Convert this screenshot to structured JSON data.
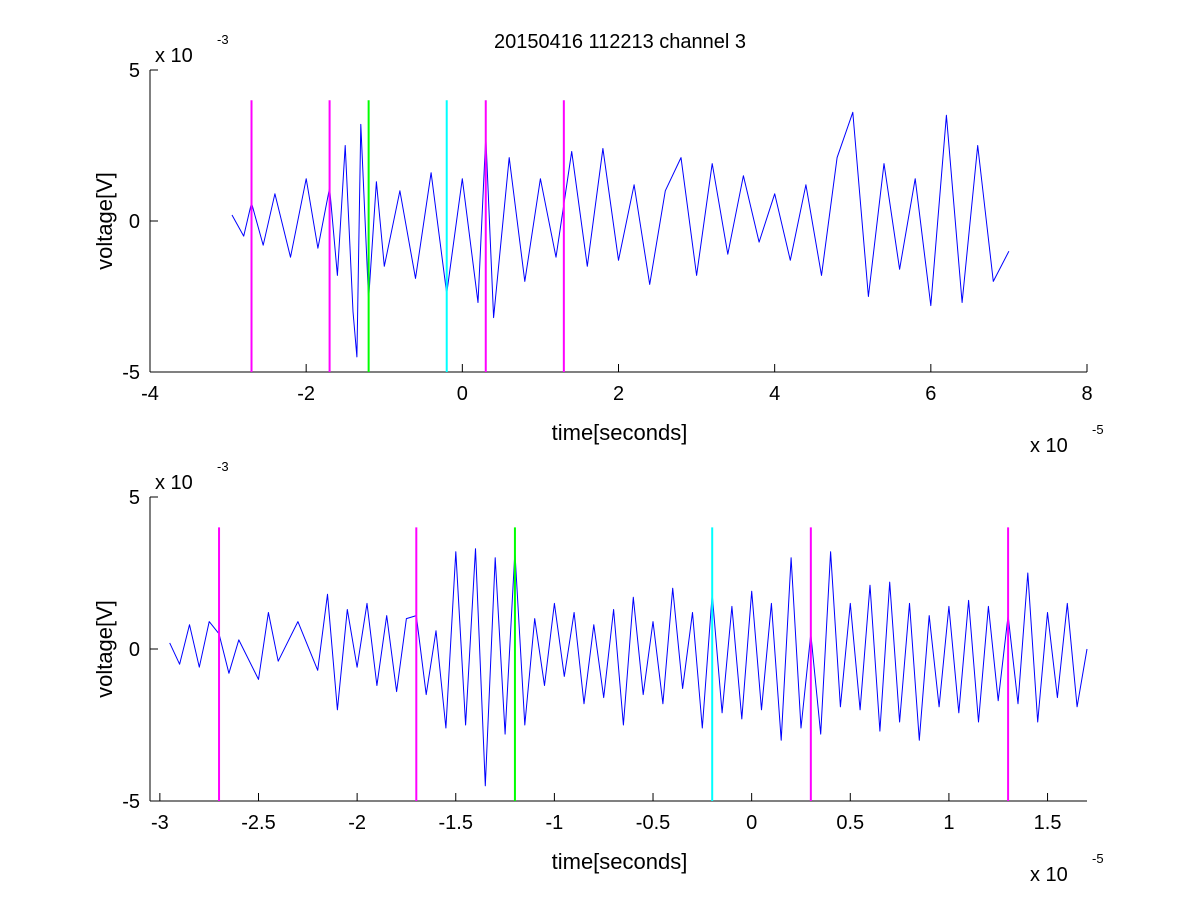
{
  "figure": {
    "title": "20150416 112213 channel 3"
  },
  "chart_data": [
    {
      "type": "line",
      "title": "20150416 112213 channel 3",
      "xlabel": "time[seconds]",
      "ylabel": "voltage[V]",
      "x_multiplier": {
        "base": "x 10",
        "exponent": "-5"
      },
      "y_multiplier": {
        "base": "x 10",
        "exponent": "-3"
      },
      "xlim": [
        -4,
        8
      ],
      "ylim": [
        -5,
        5
      ],
      "x_ticks": [
        -4,
        -2,
        0,
        2,
        4,
        6,
        8
      ],
      "y_ticks": [
        -5,
        0,
        5
      ],
      "x_tick_labels": [
        "-4",
        "-2",
        "0",
        "2",
        "4",
        "6",
        "8"
      ],
      "y_tick_labels": [
        "-5",
        "0",
        "5"
      ],
      "grid": false,
      "legend": "none",
      "signal_color": "#0000ff",
      "series": [
        {
          "x": [
            -2.95,
            -2.8,
            -2.7,
            -2.55,
            -2.4,
            -2.2,
            -2.0,
            -1.85,
            -1.7,
            -1.6,
            -1.5,
            -1.4,
            -1.35,
            -1.3,
            -1.2,
            -1.1,
            -1.0,
            -0.8,
            -0.6,
            -0.4,
            -0.2,
            0.0,
            0.2,
            0.3,
            0.4,
            0.6,
            0.8,
            1.0,
            1.2,
            1.4,
            1.6,
            1.8,
            2.0,
            2.2,
            2.4,
            2.6,
            2.8,
            3.0,
            3.2,
            3.4,
            3.6,
            3.8,
            4.0,
            4.2,
            4.4,
            4.6,
            4.8,
            5.0,
            5.2,
            5.4,
            5.6,
            5.8,
            6.0,
            6.2,
            6.4,
            6.6,
            6.8,
            7.0
          ],
          "y": [
            0.2,
            -0.5,
            0.6,
            -0.8,
            0.9,
            -1.2,
            1.4,
            -0.9,
            1.1,
            -1.8,
            2.5,
            -3.0,
            -4.5,
            3.2,
            -2.6,
            1.3,
            -1.5,
            1.0,
            -1.9,
            1.6,
            -2.4,
            1.4,
            -2.7,
            2.8,
            -3.2,
            2.1,
            -2.0,
            1.4,
            -1.2,
            2.3,
            -1.5,
            2.4,
            -1.3,
            1.2,
            -2.1,
            1.0,
            2.1,
            -1.8,
            1.9,
            -1.1,
            1.5,
            -0.7,
            0.9,
            -1.3,
            1.2,
            -1.8,
            2.1,
            3.6,
            -2.5,
            1.9,
            -1.6,
            1.4,
            -2.8,
            3.5,
            -2.7,
            2.5,
            -2.0,
            -1.0
          ]
        }
      ],
      "markers": [
        {
          "x": -2.7,
          "color": "#ff00ff"
        },
        {
          "x": -1.7,
          "color": "#ff00ff"
        },
        {
          "x": -1.2,
          "color": "#00ff00"
        },
        {
          "x": -0.2,
          "color": "#00ffff"
        },
        {
          "x": 0.3,
          "color": "#ff00ff"
        },
        {
          "x": 1.3,
          "color": "#ff00ff"
        }
      ],
      "marker_range": [
        -5,
        4
      ]
    },
    {
      "type": "line",
      "title": "",
      "xlabel": "time[seconds]",
      "ylabel": "voltage[V]",
      "x_multiplier": {
        "base": "x 10",
        "exponent": "-5"
      },
      "y_multiplier": {
        "base": "x 10",
        "exponent": "-3"
      },
      "xlim": [
        -3.05,
        1.7
      ],
      "ylim": [
        -5,
        5
      ],
      "x_ticks": [
        -3,
        -2.5,
        -2,
        -1.5,
        -1,
        -0.5,
        0,
        0.5,
        1,
        1.5
      ],
      "y_ticks": [
        -5,
        0,
        5
      ],
      "x_tick_labels": [
        "-3",
        "-2.5",
        "-2",
        "-1.5",
        "-1",
        "-0.5",
        "0",
        "0.5",
        "1",
        "1.5"
      ],
      "y_tick_labels": [
        "-5",
        "0",
        "5"
      ],
      "grid": false,
      "legend": "none",
      "signal_color": "#0000ff",
      "series": [
        {
          "x": [
            -2.95,
            -2.9,
            -2.85,
            -2.8,
            -2.75,
            -2.7,
            -2.65,
            -2.6,
            -2.5,
            -2.45,
            -2.4,
            -2.3,
            -2.2,
            -2.15,
            -2.1,
            -2.05,
            -2.0,
            -1.95,
            -1.9,
            -1.85,
            -1.8,
            -1.75,
            -1.7,
            -1.65,
            -1.6,
            -1.55,
            -1.5,
            -1.45,
            -1.4,
            -1.35,
            -1.3,
            -1.25,
            -1.2,
            -1.15,
            -1.1,
            -1.05,
            -1.0,
            -0.95,
            -0.9,
            -0.85,
            -0.8,
            -0.75,
            -0.7,
            -0.65,
            -0.6,
            -0.55,
            -0.5,
            -0.45,
            -0.4,
            -0.35,
            -0.3,
            -0.25,
            -0.2,
            -0.15,
            -0.1,
            -0.05,
            0.0,
            0.05,
            0.1,
            0.15,
            0.2,
            0.25,
            0.3,
            0.35,
            0.4,
            0.45,
            0.5,
            0.55,
            0.6,
            0.65,
            0.7,
            0.75,
            0.8,
            0.85,
            0.9,
            0.95,
            1.0,
            1.05,
            1.1,
            1.15,
            1.2,
            1.25,
            1.3,
            1.35,
            1.4,
            1.45,
            1.5,
            1.55,
            1.6,
            1.65,
            1.7
          ],
          "y": [
            0.2,
            -0.5,
            0.8,
            -0.6,
            0.9,
            0.5,
            -0.8,
            0.3,
            -1.0,
            1.2,
            -0.4,
            0.9,
            -0.7,
            1.8,
            -2.0,
            1.3,
            -0.6,
            1.5,
            -1.2,
            1.1,
            -1.4,
            1.0,
            1.1,
            -1.5,
            0.6,
            -2.6,
            3.2,
            -2.5,
            3.3,
            -4.5,
            3.0,
            -2.8,
            3.2,
            -2.5,
            1.0,
            -1.2,
            1.5,
            -0.9,
            1.2,
            -1.8,
            0.8,
            -1.6,
            1.3,
            -2.5,
            1.7,
            -1.5,
            0.9,
            -1.8,
            2.0,
            -1.3,
            1.2,
            -2.6,
            1.8,
            -2.1,
            1.4,
            -2.3,
            1.9,
            -2.0,
            1.5,
            -3.0,
            3.0,
            -2.6,
            0.5,
            -2.8,
            3.2,
            -1.9,
            1.5,
            -2.0,
            2.1,
            -2.7,
            2.2,
            -2.4,
            1.5,
            -3.0,
            1.1,
            -1.9,
            1.4,
            -2.1,
            1.6,
            -2.4,
            1.4,
            -1.7,
            1.1,
            -1.8,
            2.5,
            -2.4,
            1.2,
            -1.6,
            1.5,
            -1.9,
            0.0
          ]
        }
      ],
      "markers": [
        {
          "x": -2.7,
          "color": "#ff00ff"
        },
        {
          "x": -1.7,
          "color": "#ff00ff"
        },
        {
          "x": -1.2,
          "color": "#00ff00"
        },
        {
          "x": -0.2,
          "color": "#00ffff"
        },
        {
          "x": 0.3,
          "color": "#ff00ff"
        },
        {
          "x": 1.3,
          "color": "#ff00ff"
        }
      ],
      "marker_range": [
        -5,
        4
      ]
    }
  ]
}
